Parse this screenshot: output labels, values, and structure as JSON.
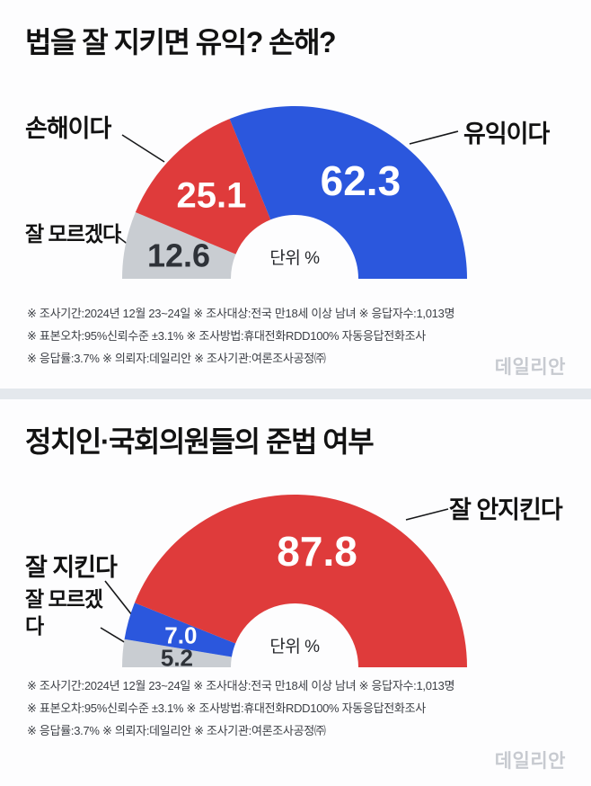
{
  "watermark": "데일리안",
  "footnotes": [
    "※ 조사기간:2024년 12월 23~24일  ※ 조사대상:전국 만18세 이상 남녀  ※ 응답자수:1,013명",
    "※ 표본오차:95%신뢰수준 ±3.1%  ※ 조사방법:휴대전화RDD100% 자동응답전화조사",
    "※ 응답률:3.7%  ※ 의뢰자:데일리안  ※ 조사기관:여론조사공정㈜"
  ],
  "chart_data": [
    {
      "type": "pie",
      "variant": "half-donut",
      "title": "법을 잘 지키면 유익? 손해?",
      "unit_label": "단위 %",
      "unit": "%",
      "layout": {
        "start_side": "left",
        "sweep_deg": 180,
        "legend": "callout-labels"
      },
      "segments": [
        {
          "key": "dont-know",
          "label": "잘 모르겠다",
          "value": 12.6,
          "color": "#c9cdd2",
          "value_color": "#2e3238"
        },
        {
          "key": "harmful",
          "label": "손해이다",
          "value": 25.1,
          "color": "#df3b3b",
          "value_color": "#ffffff"
        },
        {
          "key": "beneficial",
          "label": "유익이다",
          "value": 62.3,
          "color": "#2b57dd",
          "value_color": "#ffffff"
        }
      ]
    },
    {
      "type": "pie",
      "variant": "half-donut",
      "title": "정치인·국회의원들의 준법 여부",
      "unit_label": "단위 %",
      "unit": "%",
      "layout": {
        "start_side": "left",
        "sweep_deg": 180,
        "legend": "callout-labels"
      },
      "segments": [
        {
          "key": "dont-know",
          "label": "잘 모르겠다",
          "value": 5.2,
          "color": "#c9cdd2",
          "value_color": "#2e3238"
        },
        {
          "key": "obeys",
          "label": "잘 지킨다",
          "value": 7.0,
          "color": "#2b57dd",
          "value_color": "#ffffff"
        },
        {
          "key": "not-obeys",
          "label": "잘 안지킨다",
          "value": 87.8,
          "color": "#df3b3b",
          "value_color": "#ffffff"
        }
      ]
    }
  ]
}
